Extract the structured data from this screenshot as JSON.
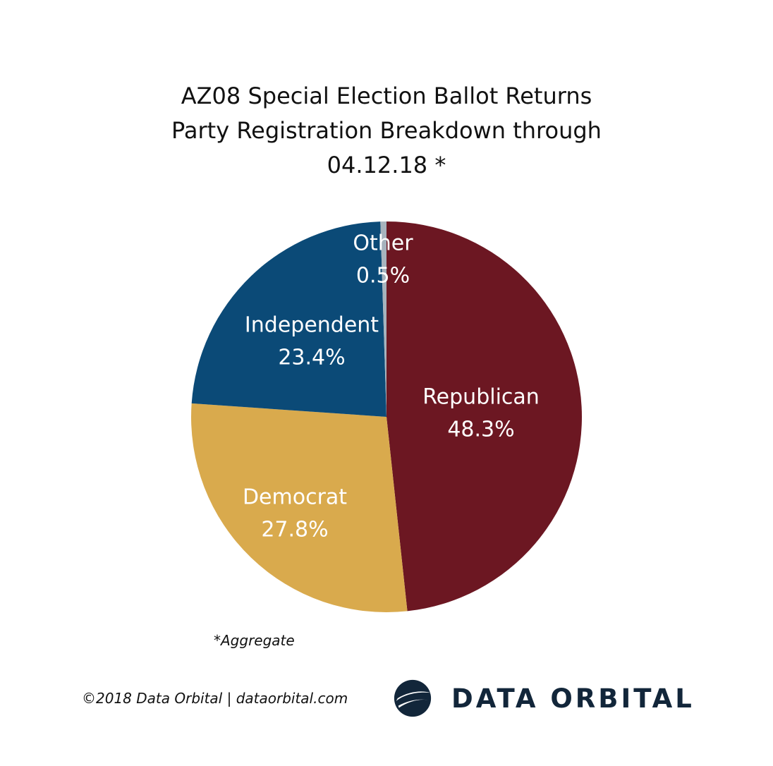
{
  "chart_data": {
    "type": "pie",
    "title": [
      "AZ08 Special Election Ballot Returns",
      "Party Registration Breakdown through",
      "04.12.18 *"
    ],
    "slices": [
      {
        "label": "Republican",
        "value": 48.3,
        "display": "48.3%",
        "color": "#6c1722"
      },
      {
        "label": "Democrat",
        "value": 27.8,
        "display": "27.8%",
        "color": "#d9aa4d"
      },
      {
        "label": "Independent",
        "value": 23.4,
        "display": "23.4%",
        "color": "#0b4a77"
      },
      {
        "label": "Other",
        "value": 0.5,
        "display": "0.5%",
        "color": "#a7b3bd"
      }
    ],
    "start": "12 o'clock",
    "direction": "clockwise"
  },
  "footnote": "*Aggregate",
  "copyright": "©2018 Data Orbital | dataorbital.com",
  "brand": {
    "name": "DATA ORBITAL",
    "logo_icon": "orbital-globe-icon",
    "color": "#12263a"
  }
}
